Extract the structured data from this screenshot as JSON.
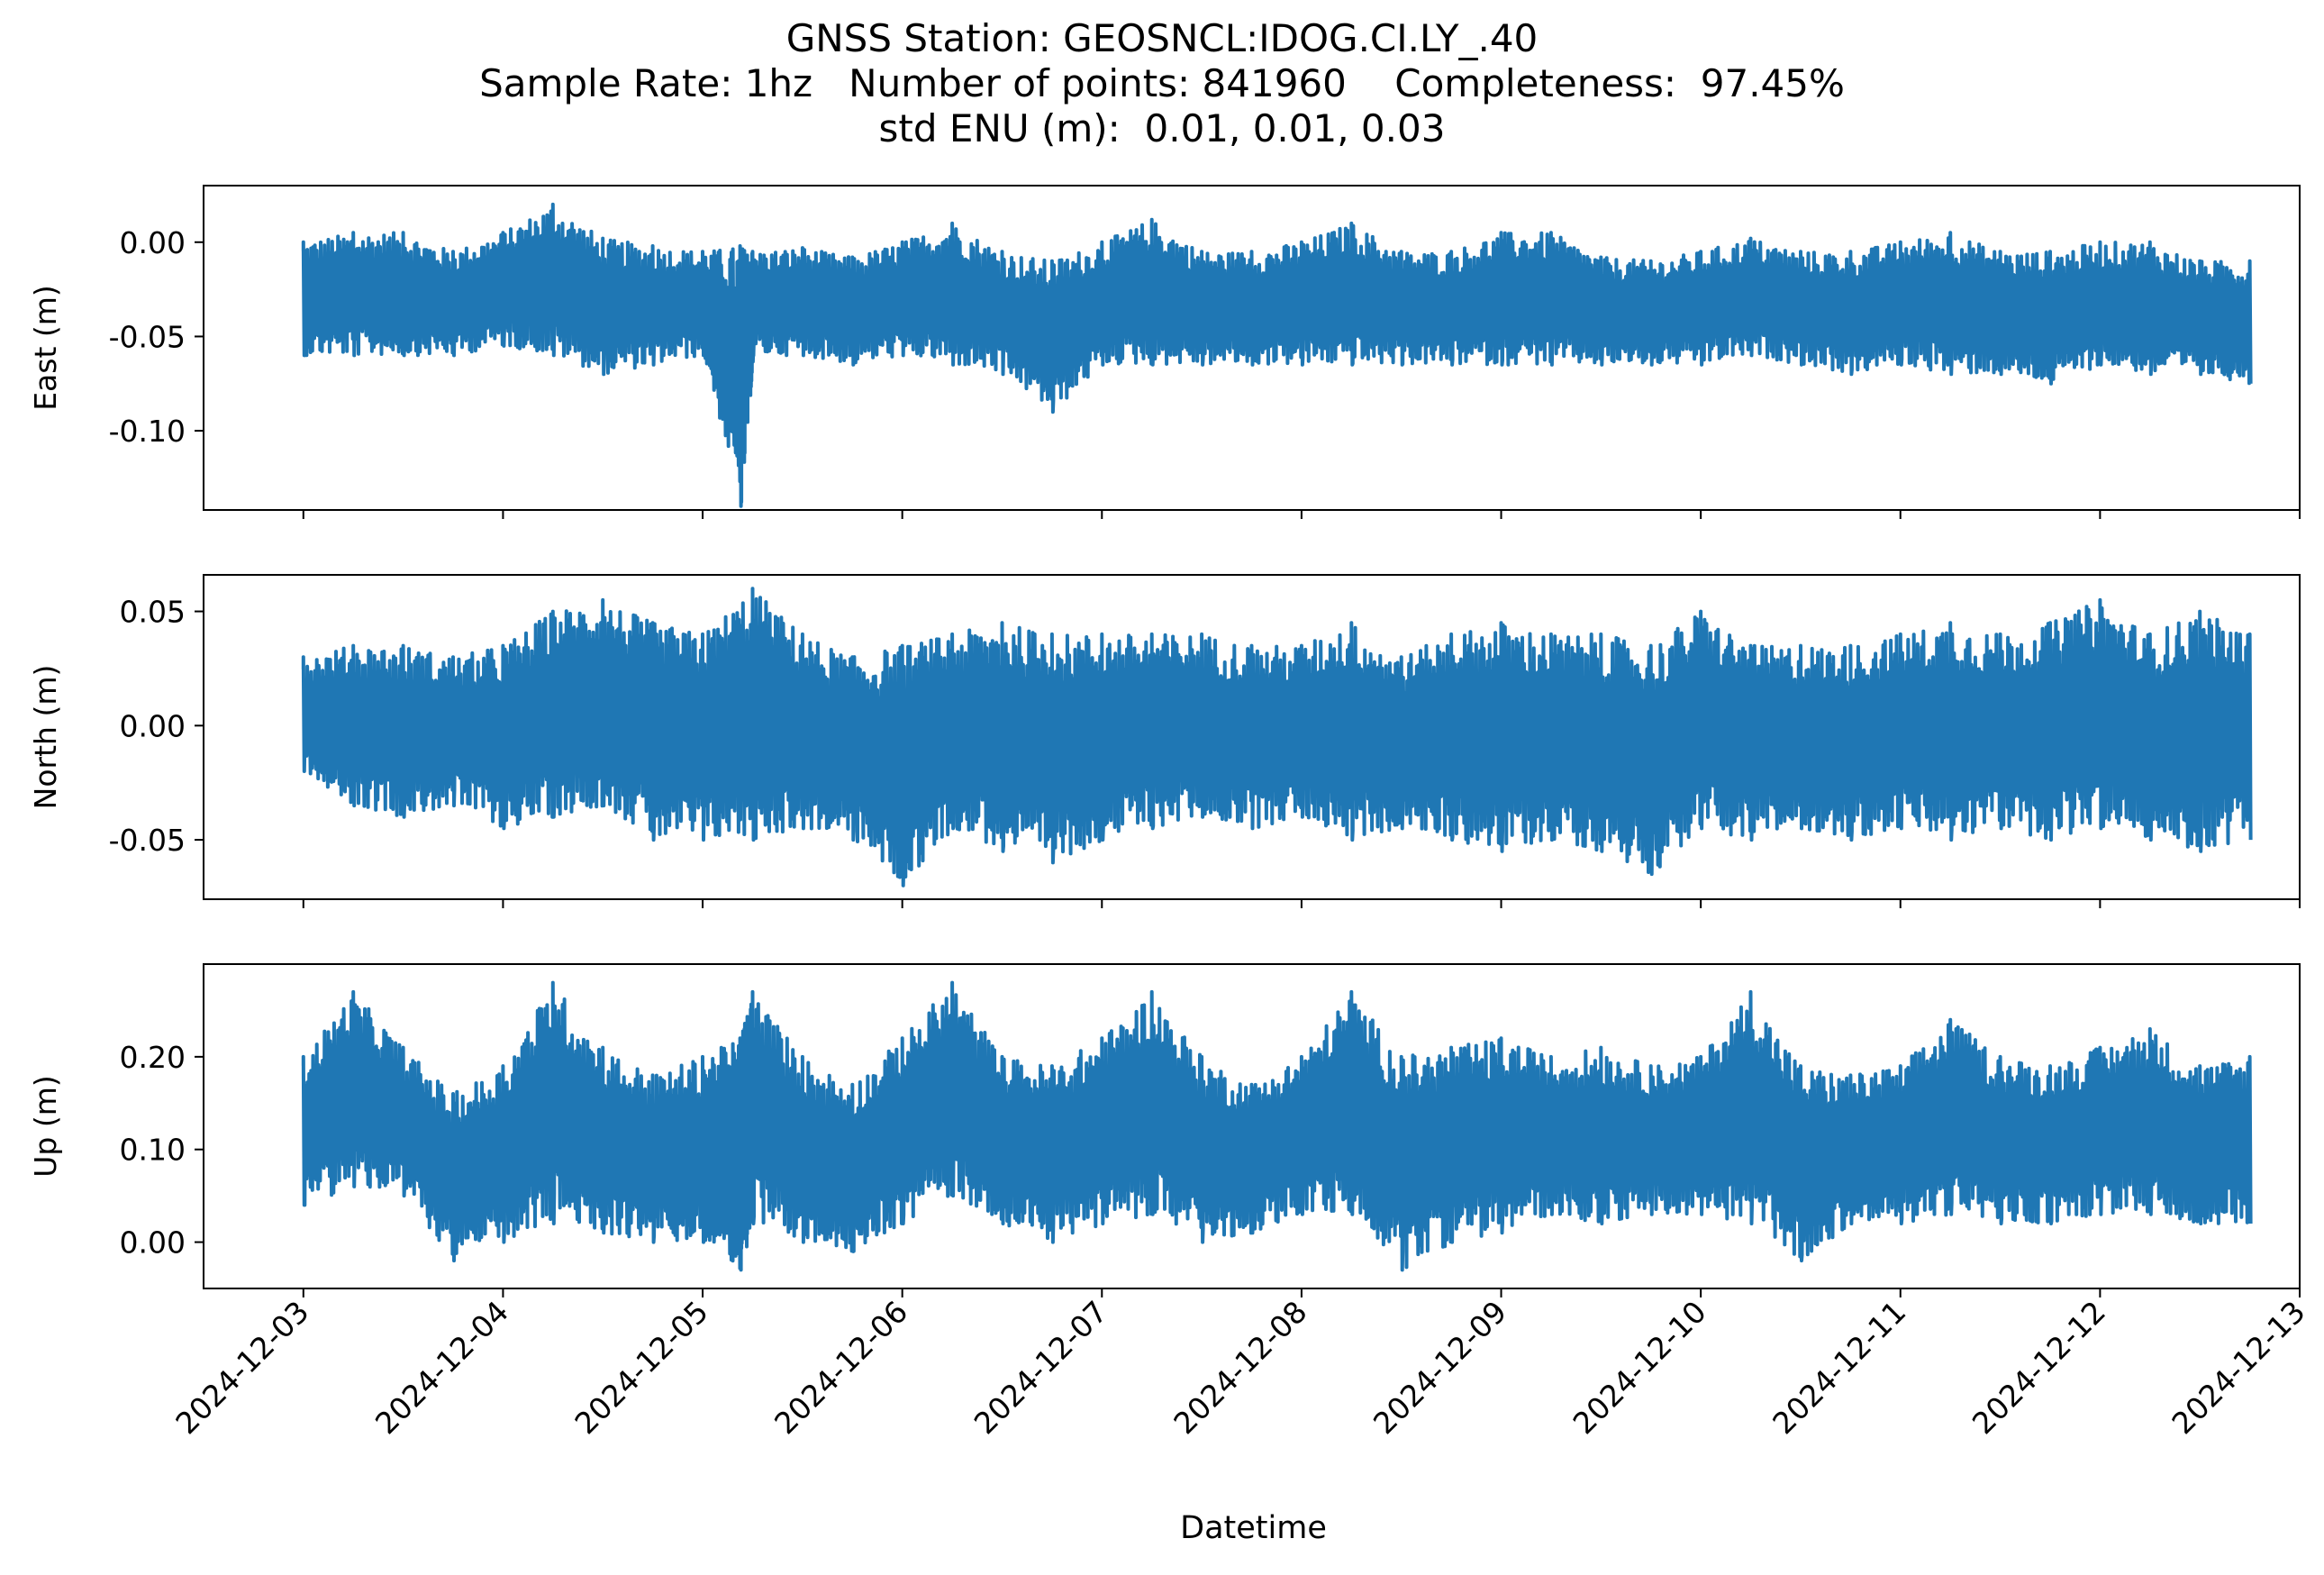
{
  "title": {
    "line1": "GNSS Station: GEOSNCL:IDOG.CI.LY_.40",
    "line2": "Sample Rate: 1hz   Number of points: 841960    Completeness:  97.45%",
    "line3": "std ENU (m):  0.01, 0.01, 0.03"
  },
  "chart_data": [
    {
      "type": "line",
      "panel": "east",
      "ylabel": "East (m)",
      "ylim": [
        -0.142,
        0.03
      ],
      "yticks": [
        0.0,
        -0.05,
        -0.1
      ],
      "ytick_labels": [
        "0.00",
        "-0.05",
        "-0.10"
      ],
      "xlim": [
        "2024-12-02T12:00",
        "2024-12-13T00:00"
      ],
      "color": "#1f77b4",
      "series": [
        {
          "x": [
            "2024-12-03T00:00",
            "2024-12-03T06:00",
            "2024-12-03T12:00",
            "2024-12-03T18:00",
            "2024-12-04T00:00",
            "2024-12-04T06:00",
            "2024-12-04T12:00",
            "2024-12-04T18:00",
            "2024-12-05T00:00",
            "2024-12-05T04:30",
            "2024-12-05T06:00",
            "2024-12-05T12:00",
            "2024-12-05T18:00",
            "2024-12-06T00:00",
            "2024-12-06T06:00",
            "2024-12-06T12:00",
            "2024-12-06T18:00",
            "2024-12-07T00:00",
            "2024-12-07T06:00",
            "2024-12-07T12:00",
            "2024-12-07T18:00",
            "2024-12-08T00:00",
            "2024-12-08T06:00",
            "2024-12-08T12:00",
            "2024-12-08T18:00",
            "2024-12-09T00:00",
            "2024-12-09T06:00",
            "2024-12-09T12:00",
            "2024-12-09T18:00",
            "2024-12-10T00:00",
            "2024-12-10T06:00",
            "2024-12-10T12:00",
            "2024-12-10T18:00",
            "2024-12-11T00:00",
            "2024-12-11T06:00",
            "2024-12-11T12:00",
            "2024-12-11T18:00",
            "2024-12-12T00:00",
            "2024-12-12T06:00",
            "2024-12-12T12:00",
            "2024-12-12T18:00"
          ],
          "y_max": [
            0.0,
            0.005,
            0.005,
            -0.005,
            0.005,
            0.02,
            0.002,
            -0.002,
            -0.005,
            -0.002,
            -0.005,
            -0.003,
            -0.008,
            0.0,
            0.01,
            -0.005,
            -0.01,
            0.0,
            0.012,
            -0.005,
            -0.005,
            0.0,
            0.01,
            -0.005,
            -0.005,
            0.005,
            0.005,
            -0.008,
            -0.01,
            -0.005,
            0.002,
            -0.005,
            -0.005,
            0.0,
            0.005,
            -0.005,
            -0.005,
            0.0,
            0.0,
            -0.01,
            -0.01
          ],
          "y_min": [
            -0.06,
            -0.06,
            -0.06,
            -0.06,
            -0.055,
            -0.06,
            -0.07,
            -0.065,
            -0.06,
            -0.14,
            -0.06,
            -0.06,
            -0.065,
            -0.06,
            -0.065,
            -0.07,
            -0.09,
            -0.065,
            -0.065,
            -0.065,
            -0.065,
            -0.065,
            -0.065,
            -0.065,
            -0.065,
            -0.065,
            -0.065,
            -0.065,
            -0.065,
            -0.065,
            -0.06,
            -0.065,
            -0.07,
            -0.065,
            -0.07,
            -0.07,
            -0.075,
            -0.065,
            -0.07,
            -0.07,
            -0.075
          ]
        }
      ]
    },
    {
      "type": "line",
      "panel": "north",
      "ylabel": "North (m)",
      "ylim": [
        -0.076,
        0.066
      ],
      "yticks": [
        0.05,
        0.0,
        -0.05
      ],
      "ytick_labels": [
        "0.05",
        "0.00",
        "-0.05"
      ],
      "xlim": [
        "2024-12-02T12:00",
        "2024-12-13T00:00"
      ],
      "color": "#1f77b4",
      "series": [
        {
          "x": [
            "2024-12-03T00:00",
            "2024-12-03T06:00",
            "2024-12-03T12:00",
            "2024-12-03T18:00",
            "2024-12-04T00:00",
            "2024-12-04T06:00",
            "2024-12-04T12:00",
            "2024-12-04T18:00",
            "2024-12-05T00:00",
            "2024-12-05T06:00",
            "2024-12-05T12:00",
            "2024-12-05T18:00",
            "2024-12-06T00:00",
            "2024-12-06T06:00",
            "2024-12-06T12:00",
            "2024-12-06T18:00",
            "2024-12-07T00:00",
            "2024-12-07T06:00",
            "2024-12-07T12:00",
            "2024-12-07T18:00",
            "2024-12-08T00:00",
            "2024-12-08T06:00",
            "2024-12-08T12:00",
            "2024-12-08T18:00",
            "2024-12-09T00:00",
            "2024-12-09T06:00",
            "2024-12-09T12:00",
            "2024-12-09T18:00",
            "2024-12-10T00:00",
            "2024-12-10T06:00",
            "2024-12-10T12:00",
            "2024-12-10T18:00",
            "2024-12-11T00:00",
            "2024-12-11T06:00",
            "2024-12-11T12:00",
            "2024-12-11T18:00",
            "2024-12-12T00:00",
            "2024-12-12T06:00",
            "2024-12-12T12:00",
            "2024-12-12T18:00"
          ],
          "y_max": [
            0.03,
            0.035,
            0.035,
            0.03,
            0.035,
            0.05,
            0.055,
            0.045,
            0.04,
            0.06,
            0.04,
            0.03,
            0.035,
            0.04,
            0.045,
            0.04,
            0.04,
            0.04,
            0.04,
            0.035,
            0.035,
            0.045,
            0.03,
            0.04,
            0.045,
            0.04,
            0.04,
            0.035,
            0.05,
            0.035,
            0.035,
            0.035,
            0.04,
            0.045,
            0.04,
            0.045,
            0.055,
            0.04,
            0.05,
            0.04
          ],
          "y_min": [
            -0.02,
            -0.035,
            -0.04,
            -0.035,
            -0.045,
            -0.04,
            -0.035,
            -0.05,
            -0.05,
            -0.05,
            -0.045,
            -0.05,
            -0.07,
            -0.045,
            -0.055,
            -0.06,
            -0.05,
            -0.045,
            -0.04,
            -0.045,
            -0.04,
            -0.05,
            -0.045,
            -0.05,
            -0.055,
            -0.05,
            -0.055,
            -0.065,
            -0.045,
            -0.05,
            -0.045,
            -0.05,
            -0.045,
            -0.05,
            -0.045,
            -0.05,
            -0.045,
            -0.05,
            -0.055,
            -0.05
          ]
        }
      ]
    },
    {
      "type": "line",
      "panel": "up",
      "ylabel": "Up (m)",
      "ylim": [
        -0.05,
        0.3
      ],
      "yticks": [
        0.2,
        0.1,
        0.0
      ],
      "ytick_labels": [
        "0.20",
        "0.10",
        "0.00"
      ],
      "xlim": [
        "2024-12-02T12:00",
        "2024-12-13T00:00"
      ],
      "xticks": [
        "2024-12-03",
        "2024-12-04",
        "2024-12-05",
        "2024-12-06",
        "2024-12-07",
        "2024-12-08",
        "2024-12-09",
        "2024-12-10",
        "2024-12-11",
        "2024-12-12",
        "2024-12-13"
      ],
      "xlabel": "Datetime",
      "color": "#1f77b4",
      "series": [
        {
          "x": [
            "2024-12-03T00:00",
            "2024-12-03T06:00",
            "2024-12-03T12:00",
            "2024-12-03T18:00",
            "2024-12-04T00:00",
            "2024-12-04T06:00",
            "2024-12-04T12:00",
            "2024-12-04T18:00",
            "2024-12-05T00:00",
            "2024-12-05T04:30",
            "2024-12-05T06:00",
            "2024-12-05T12:00",
            "2024-12-05T18:00",
            "2024-12-06T00:00",
            "2024-12-06T06:00",
            "2024-12-06T12:00",
            "2024-12-06T18:00",
            "2024-12-07T00:00",
            "2024-12-07T06:00",
            "2024-12-07T12:00",
            "2024-12-07T18:00",
            "2024-12-08T00:00",
            "2024-12-08T06:00",
            "2024-12-08T12:00",
            "2024-12-08T18:00",
            "2024-12-09T00:00",
            "2024-12-09T06:00",
            "2024-12-09T12:00",
            "2024-12-09T18:00",
            "2024-12-10T00:00",
            "2024-12-10T06:00",
            "2024-12-10T12:00",
            "2024-12-10T18:00",
            "2024-12-11T00:00",
            "2024-12-11T06:00",
            "2024-12-11T12:00",
            "2024-12-11T18:00",
            "2024-12-12T00:00",
            "2024-12-12T06:00",
            "2024-12-12T12:00",
            "2024-12-12T18:00"
          ],
          "y_max": [
            0.2,
            0.27,
            0.21,
            0.16,
            0.19,
            0.28,
            0.21,
            0.18,
            0.2,
            0.22,
            0.27,
            0.2,
            0.17,
            0.22,
            0.28,
            0.2,
            0.19,
            0.22,
            0.27,
            0.2,
            0.17,
            0.2,
            0.27,
            0.2,
            0.21,
            0.22,
            0.2,
            0.21,
            0.19,
            0.2,
            0.27,
            0.19,
            0.18,
            0.19,
            0.24,
            0.2,
            0.19,
            0.21,
            0.23,
            0.19,
            0.2
          ],
          "y_min": [
            0.04,
            0.06,
            0.05,
            -0.02,
            0.0,
            0.02,
            0.01,
            0.0,
            0.0,
            -0.03,
            0.02,
            0.0,
            -0.01,
            0.02,
            0.05,
            0.02,
            0.0,
            0.02,
            0.03,
            0.0,
            0.01,
            0.03,
            0.03,
            -0.03,
            0.0,
            0.01,
            0.03,
            0.02,
            0.03,
            0.03,
            0.02,
            -0.02,
            0.02,
            0.02,
            0.03,
            0.02,
            0.02,
            0.03,
            0.03,
            0.02,
            0.02
          ]
        }
      ]
    }
  ]
}
